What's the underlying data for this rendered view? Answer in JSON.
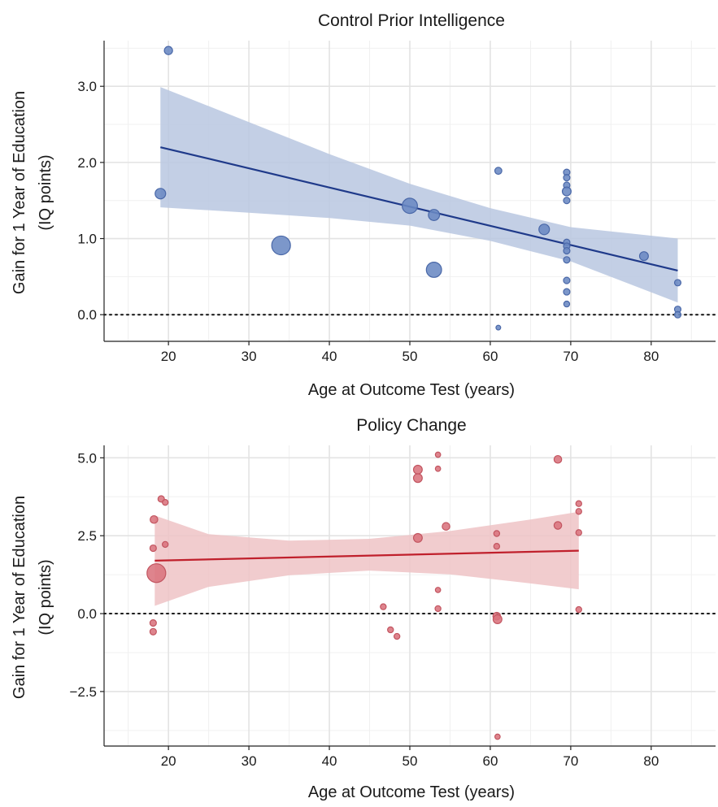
{
  "colors": {
    "blue_point": "#6a89c3",
    "blue_point_stroke": "#4a68a8",
    "blue_band": "#b8c7e1",
    "blue_line": "#1f3a8a",
    "red_point": "#d9737d",
    "red_point_stroke": "#c25560",
    "red_band": "#eec3c6",
    "red_line": "#c0202c"
  },
  "chart_data": [
    {
      "type": "scatter",
      "title": "Control Prior Intelligence",
      "xlabel": "Age at Outcome Test (years)",
      "ylabel": [
        "Gain for 1 Year of Education",
        "(IQ points)"
      ],
      "xlim": [
        12,
        88
      ],
      "ylim": [
        -0.35,
        3.6
      ],
      "x_ticks": [
        20,
        30,
        40,
        50,
        60,
        70,
        80
      ],
      "x_tick_labels": [
        "20",
        "30",
        "40",
        "50",
        "60",
        "70",
        "80"
      ],
      "y_ticks": [
        0,
        1,
        2,
        3
      ],
      "y_tick_labels": [
        "0.0",
        "1.0",
        "2.0",
        "3.0"
      ],
      "grid": true,
      "reference_line_y": 0,
      "fit_line": {
        "x": [
          19,
          83.3
        ],
        "y": [
          2.2,
          0.58
        ]
      },
      "confidence_band": {
        "x": [
          19,
          30,
          40,
          50,
          60,
          70,
          83.3
        ],
        "lower": [
          1.41,
          1.34,
          1.27,
          1.17,
          0.97,
          0.7,
          0.16
        ],
        "upper": [
          2.99,
          2.53,
          2.11,
          1.72,
          1.4,
          1.15,
          1.0
        ]
      },
      "points": [
        {
          "x": 20,
          "y": 3.47,
          "size": 1.4
        },
        {
          "x": 19,
          "y": 1.59,
          "size": 1.8
        },
        {
          "x": 34,
          "y": 0.91,
          "size": 3.2
        },
        {
          "x": 50,
          "y": 1.43,
          "size": 2.6
        },
        {
          "x": 53,
          "y": 1.31,
          "size": 1.9
        },
        {
          "x": 53,
          "y": 0.59,
          "size": 2.6
        },
        {
          "x": 61,
          "y": 1.89,
          "size": 1.2
        },
        {
          "x": 61,
          "y": -0.17,
          "size": 0.8
        },
        {
          "x": 66.7,
          "y": 1.12,
          "size": 1.8
        },
        {
          "x": 69.5,
          "y": 1.87,
          "size": 1.1
        },
        {
          "x": 69.5,
          "y": 1.8,
          "size": 1.1
        },
        {
          "x": 69.5,
          "y": 1.7,
          "size": 1.1
        },
        {
          "x": 69.5,
          "y": 1.62,
          "size": 1.5
        },
        {
          "x": 69.5,
          "y": 1.5,
          "size": 1.1
        },
        {
          "x": 69.5,
          "y": 0.95,
          "size": 1.1
        },
        {
          "x": 69.5,
          "y": 0.9,
          "size": 1.1
        },
        {
          "x": 69.5,
          "y": 0.84,
          "size": 1.1
        },
        {
          "x": 69.5,
          "y": 0.72,
          "size": 1.1
        },
        {
          "x": 69.5,
          "y": 0.45,
          "size": 1.1
        },
        {
          "x": 69.5,
          "y": 0.3,
          "size": 1.1
        },
        {
          "x": 69.5,
          "y": 0.14,
          "size": 1.0
        },
        {
          "x": 79.1,
          "y": 0.77,
          "size": 1.5
        },
        {
          "x": 83.3,
          "y": 0.42,
          "size": 1.1
        },
        {
          "x": 83.3,
          "y": 0.07,
          "size": 1.1
        },
        {
          "x": 83.3,
          "y": 0.0,
          "size": 1.1
        }
      ]
    },
    {
      "type": "scatter",
      "title": "Policy Change",
      "xlabel": "Age at Outcome Test (years)",
      "ylabel": [
        "Gain for 1 Year of Education",
        "(IQ points)"
      ],
      "xlim": [
        12,
        88
      ],
      "ylim": [
        -4.25,
        5.4
      ],
      "x_ticks": [
        20,
        30,
        40,
        50,
        60,
        70,
        80
      ],
      "x_tick_labels": [
        "20",
        "30",
        "40",
        "50",
        "60",
        "70",
        "80"
      ],
      "y_ticks": [
        -2.5,
        0,
        2.5,
        5
      ],
      "y_tick_labels": [
        "−2.5",
        "0.0",
        "2.5",
        "5.0"
      ],
      "grid": true,
      "reference_line_y": 0,
      "fit_line": {
        "x": [
          18.3,
          71
        ],
        "y": [
          1.7,
          2.02
        ]
      },
      "confidence_band": {
        "x": [
          18.3,
          25,
          35,
          45,
          55,
          65,
          71
        ],
        "lower": [
          0.25,
          0.86,
          1.23,
          1.38,
          1.26,
          0.97,
          0.78
        ],
        "upper": [
          3.15,
          2.55,
          2.34,
          2.4,
          2.65,
          3.02,
          3.27
        ]
      },
      "points": [
        {
          "x": 18.5,
          "y": 1.3,
          "size": 3.2
        },
        {
          "x": 18.2,
          "y": 3.02,
          "size": 1.3
        },
        {
          "x": 18.1,
          "y": 2.1,
          "size": 1.1
        },
        {
          "x": 18.1,
          "y": -0.3,
          "size": 1.1
        },
        {
          "x": 18.1,
          "y": -0.58,
          "size": 1.1
        },
        {
          "x": 19.1,
          "y": 3.68,
          "size": 1.1
        },
        {
          "x": 19.6,
          "y": 3.57,
          "size": 1.0
        },
        {
          "x": 19.6,
          "y": 2.22,
          "size": 1.0
        },
        {
          "x": 46.7,
          "y": 0.22,
          "size": 1.0
        },
        {
          "x": 47.6,
          "y": -0.52,
          "size": 1.0
        },
        {
          "x": 48.4,
          "y": -0.73,
          "size": 1.0
        },
        {
          "x": 51,
          "y": 4.62,
          "size": 1.5
        },
        {
          "x": 51,
          "y": 4.35,
          "size": 1.5
        },
        {
          "x": 51,
          "y": 2.43,
          "size": 1.5
        },
        {
          "x": 53.5,
          "y": 5.1,
          "size": 0.9
        },
        {
          "x": 53.5,
          "y": 4.65,
          "size": 0.9
        },
        {
          "x": 53.5,
          "y": 0.76,
          "size": 0.9
        },
        {
          "x": 53.5,
          "y": 0.16,
          "size": 1.0
        },
        {
          "x": 54.5,
          "y": 2.8,
          "size": 1.3
        },
        {
          "x": 60.8,
          "y": 2.57,
          "size": 1.0
        },
        {
          "x": 60.8,
          "y": 2.16,
          "size": 1.0
        },
        {
          "x": 60.8,
          "y": -0.08,
          "size": 1.3
        },
        {
          "x": 60.9,
          "y": -0.18,
          "size": 1.5
        },
        {
          "x": 60.9,
          "y": -3.95,
          "size": 0.9
        },
        {
          "x": 68.4,
          "y": 4.95,
          "size": 1.3
        },
        {
          "x": 68.4,
          "y": 2.83,
          "size": 1.3
        },
        {
          "x": 71,
          "y": 3.53,
          "size": 1.0
        },
        {
          "x": 71,
          "y": 3.28,
          "size": 1.0
        },
        {
          "x": 71,
          "y": 2.6,
          "size": 1.0
        },
        {
          "x": 71,
          "y": 0.13,
          "size": 1.0
        }
      ]
    }
  ]
}
